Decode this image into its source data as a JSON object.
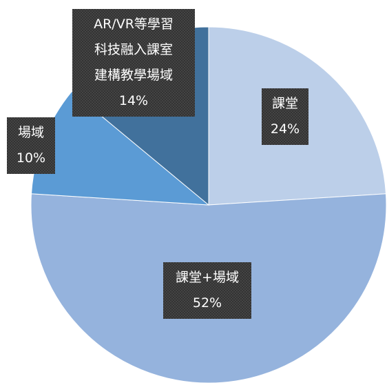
{
  "chart_data": {
    "type": "pie",
    "categories": [
      "課堂",
      "課堂+場域",
      "場域",
      "AR/VR等學習\n科技融入課室\n建構教學場域"
    ],
    "values": [
      24,
      52,
      10,
      14
    ],
    "value_labels": [
      "24%",
      "52%",
      "10%",
      "14%"
    ],
    "colors": [
      "#bccfe9",
      "#95b3dd",
      "#5b9bd5",
      "#41719c"
    ]
  }
}
